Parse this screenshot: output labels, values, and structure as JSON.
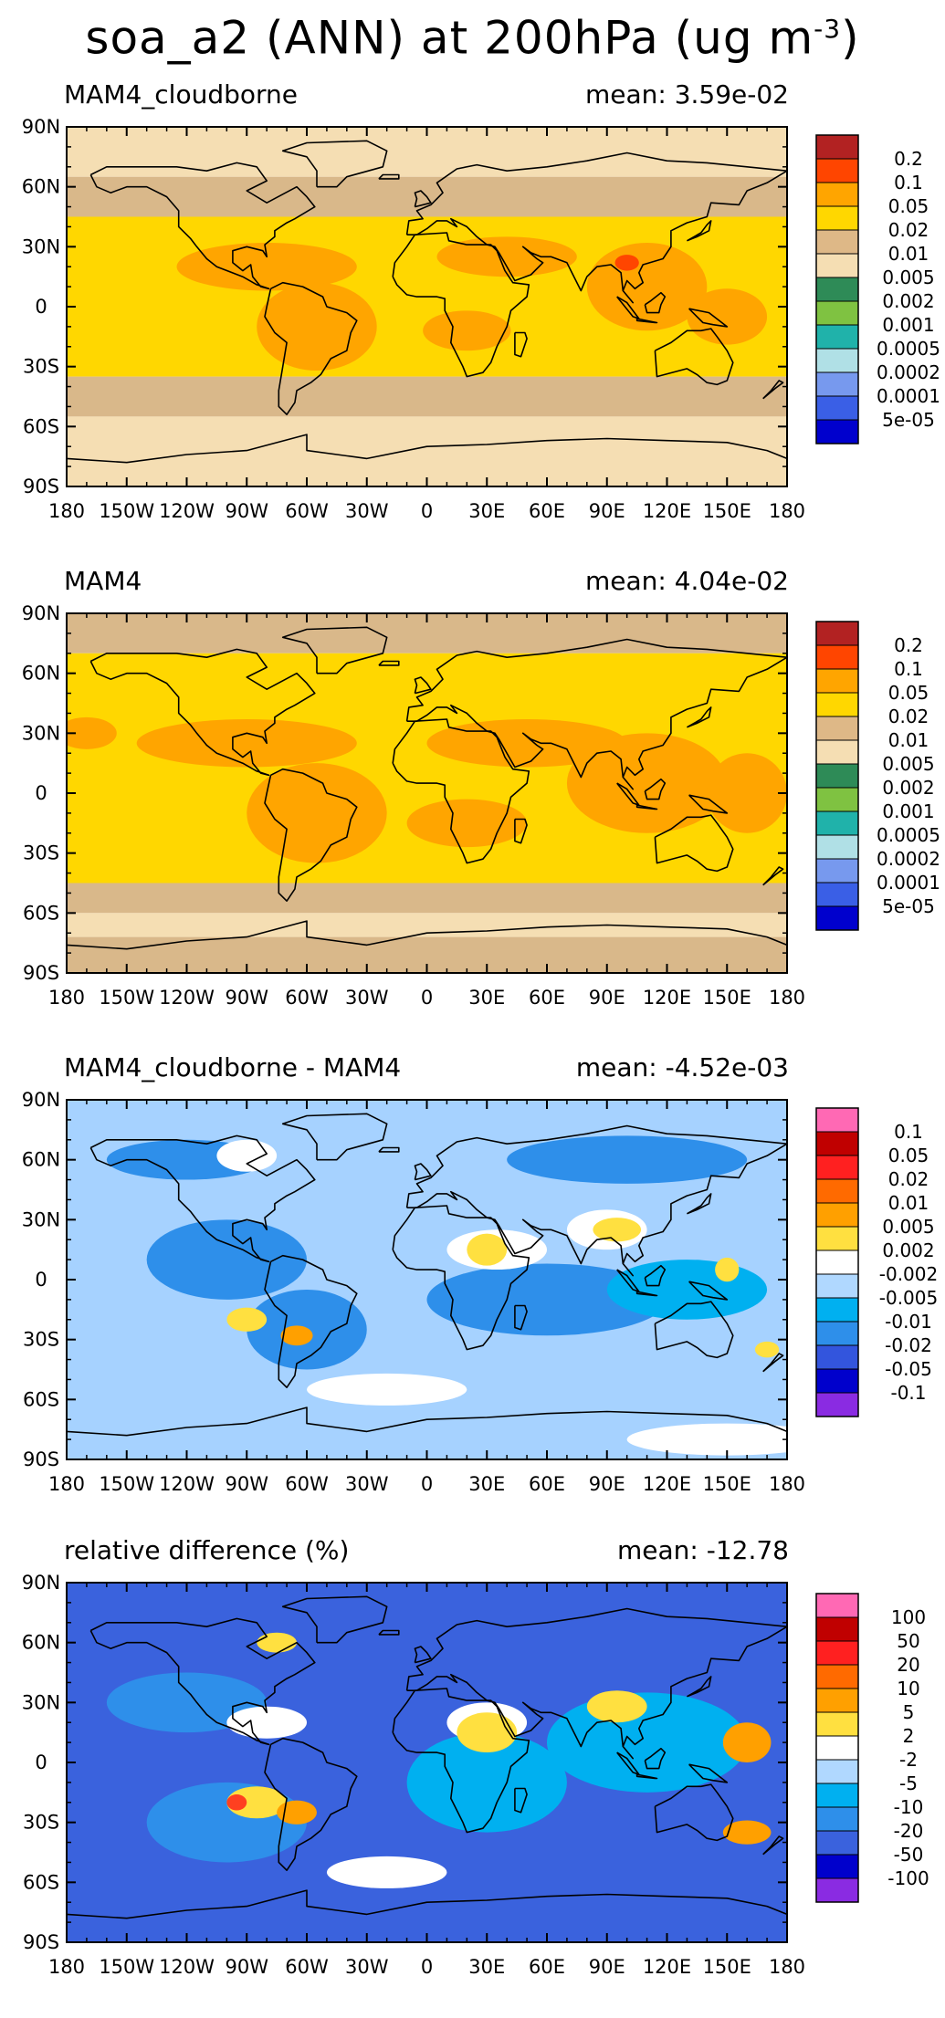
{
  "figure": {
    "title_main": "soa_a2 (ANN) at 200hPa (ug m",
    "title_sup": "-3",
    "title_close": ")"
  },
  "chart_data": [
    {
      "type": "heatmap",
      "title": "MAM4_cloudborne",
      "mean_label": "mean: 3.59e-02",
      "x_ticks": [
        "180",
        "150W",
        "120W",
        "90W",
        "60W",
        "30W",
        "0",
        "30E",
        "60E",
        "90E",
        "120E",
        "150E",
        "180"
      ],
      "y_ticks": [
        "90N",
        "60N",
        "30N",
        "0",
        "30S",
        "60S",
        "90S"
      ],
      "colorbar_labels": [
        "0.2",
        "0.1",
        "0.05",
        "0.02",
        "0.01",
        "0.005",
        "0.002",
        "0.001",
        "0.0005",
        "0.0002",
        "0.0001",
        "5e-05"
      ],
      "colorbar_colors": [
        "#b22222",
        "#ff4500",
        "#ffa500",
        "#ffd700",
        "#deb887",
        "#f5deb3",
        "#2e8b57",
        "#7fc241",
        "#20b2aa",
        "#b0e0e6",
        "#7799ee",
        "#3a5fe6",
        "#0000cd"
      ],
      "map_colors": {
        "polar": "#f5deb3",
        "mid": "#d9b88a",
        "main": "#ffd700",
        "hot": "#ffa500",
        "peak": "#ff4500"
      }
    },
    {
      "type": "heatmap",
      "title": "MAM4",
      "mean_label": "mean: 4.04e-02",
      "x_ticks": [
        "180",
        "150W",
        "120W",
        "90W",
        "60W",
        "30W",
        "0",
        "30E",
        "60E",
        "90E",
        "120E",
        "150E",
        "180"
      ],
      "y_ticks": [
        "90N",
        "60N",
        "30N",
        "0",
        "30S",
        "60S",
        "90S"
      ],
      "colorbar_labels": [
        "0.2",
        "0.1",
        "0.05",
        "0.02",
        "0.01",
        "0.005",
        "0.002",
        "0.001",
        "0.0005",
        "0.0002",
        "0.0001",
        "5e-05"
      ],
      "colorbar_colors": [
        "#b22222",
        "#ff4500",
        "#ffa500",
        "#ffd700",
        "#deb887",
        "#f5deb3",
        "#2e8b57",
        "#7fc241",
        "#20b2aa",
        "#b0e0e6",
        "#7799ee",
        "#3a5fe6",
        "#0000cd"
      ],
      "map_colors": {
        "polar": "#f5deb3",
        "mid": "#d9b88a",
        "main": "#ffd700",
        "hot": "#ffa500",
        "peak": "#ff4500"
      }
    },
    {
      "type": "heatmap",
      "title": "MAM4_cloudborne - MAM4",
      "mean_label": "mean: -4.52e-03",
      "x_ticks": [
        "180",
        "150W",
        "120W",
        "90W",
        "60W",
        "30W",
        "0",
        "30E",
        "60E",
        "90E",
        "120E",
        "150E",
        "180"
      ],
      "y_ticks": [
        "90N",
        "60N",
        "30N",
        "0",
        "30S",
        "60S",
        "90S"
      ],
      "colorbar_labels": [
        "0.1",
        "0.05",
        "0.02",
        "0.01",
        "0.005",
        "0.002",
        "-0.002",
        "-0.005",
        "-0.01",
        "-0.02",
        "-0.05",
        "-0.1"
      ],
      "colorbar_colors": [
        "#ff69b4",
        "#c00000",
        "#ff2020",
        "#ff6a00",
        "#ffa000",
        "#ffe040",
        "#ffffff",
        "#b0d8ff",
        "#00b0f0",
        "#2e8fea",
        "#3355dd",
        "#0000cc",
        "#8a2be2"
      ],
      "map_colors": {
        "base": "#a6d2ff",
        "blue": "#2e8fea",
        "cyan": "#00b0f0",
        "white": "#ffffff",
        "yellow": "#ffe040",
        "orange": "#ffa000"
      }
    },
    {
      "type": "heatmap",
      "title": "relative difference (%)",
      "mean_label": "mean: -12.78",
      "x_ticks": [
        "180",
        "150W",
        "120W",
        "90W",
        "60W",
        "30W",
        "0",
        "30E",
        "60E",
        "90E",
        "120E",
        "150E",
        "180"
      ],
      "y_ticks": [
        "90N",
        "60N",
        "30N",
        "0",
        "30S",
        "60S",
        "90S"
      ],
      "colorbar_labels": [
        "100",
        "50",
        "20",
        "10",
        "5",
        "2",
        "-2",
        "-5",
        "-10",
        "-20",
        "-50",
        "-100"
      ],
      "colorbar_colors": [
        "#ff69b4",
        "#c00000",
        "#ff2020",
        "#ff6a00",
        "#ffa000",
        "#ffe040",
        "#ffffff",
        "#b0d8ff",
        "#00b0f0",
        "#2e8fea",
        "#3a62dd",
        "#0000cc",
        "#8a2be2"
      ],
      "map_colors": {
        "base": "#3a62dd",
        "blue": "#2e8fea",
        "cyan": "#00b0f0",
        "white": "#ffffff",
        "yellow": "#ffe040",
        "orange": "#ffa000",
        "red": "#ff4020"
      }
    }
  ]
}
